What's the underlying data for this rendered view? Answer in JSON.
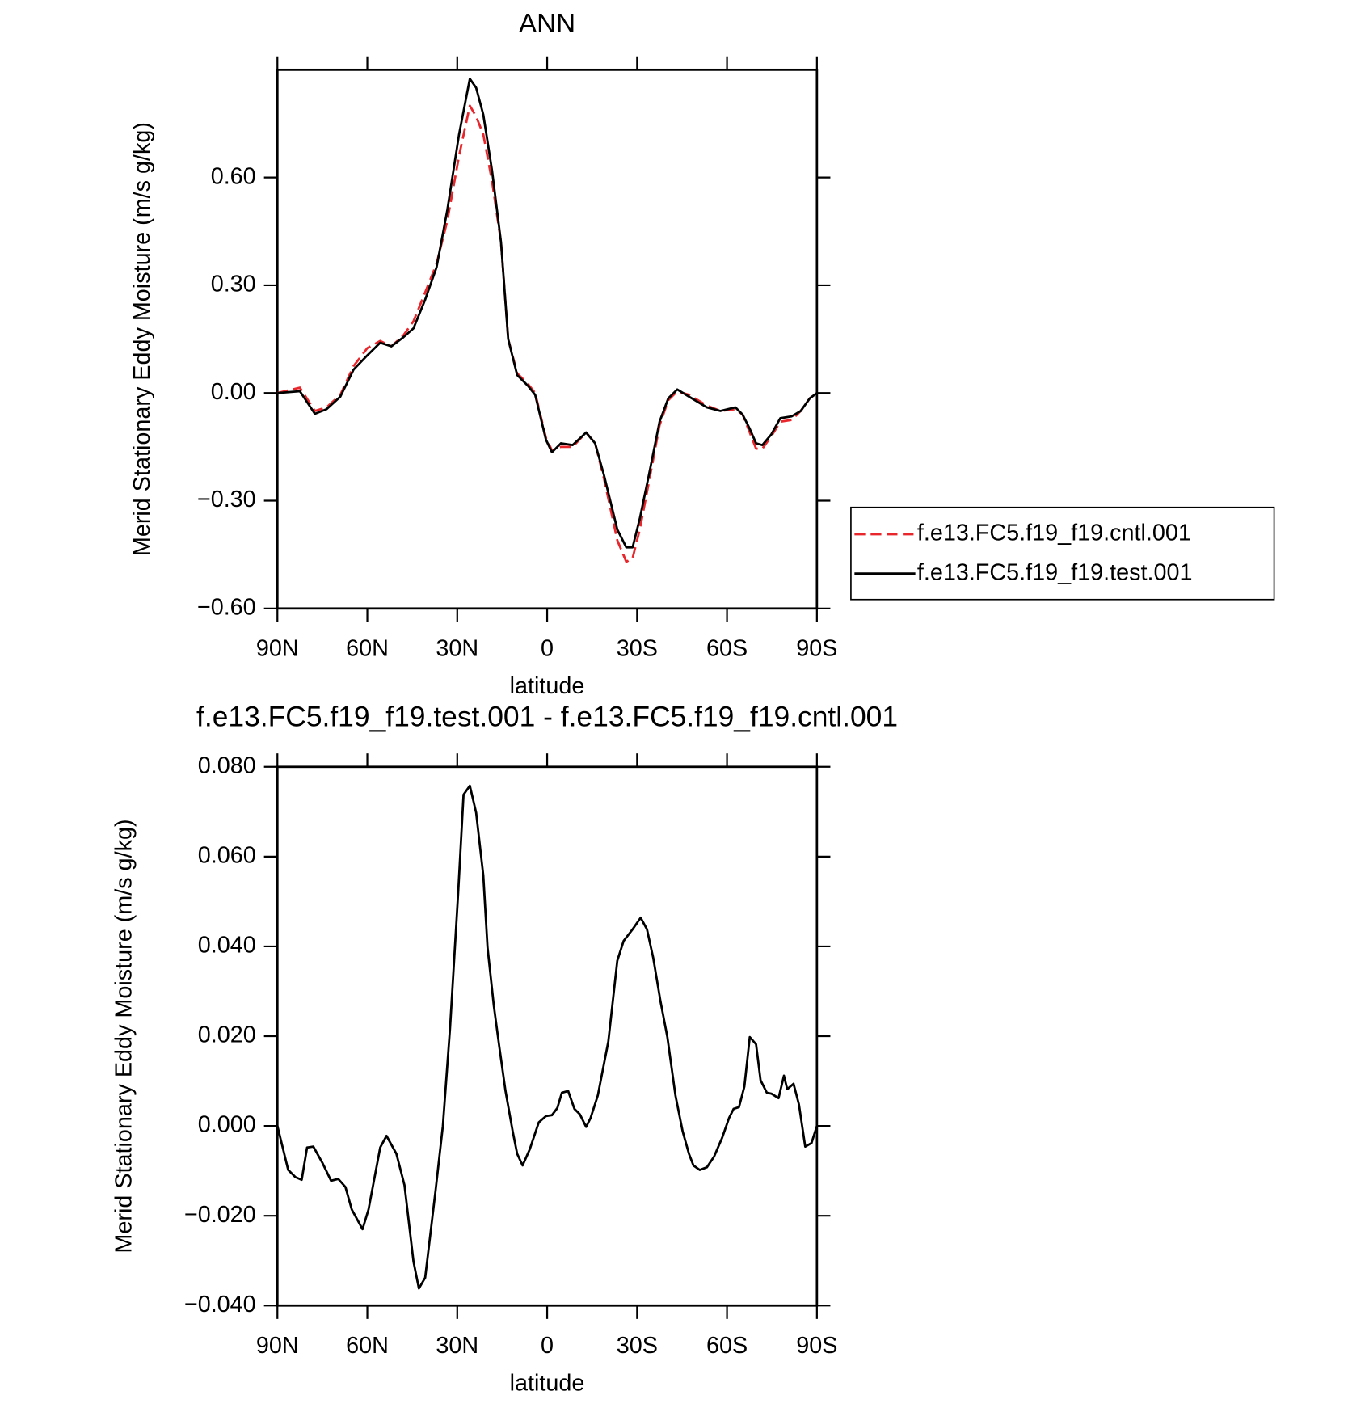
{
  "chart_data": [
    {
      "type": "line",
      "title": "ANN",
      "xlabel": "latitude",
      "ylabel": "Merid Stationary Eddy Moisture (m/s g/kg)",
      "xlim": [
        90,
        -90
      ],
      "xticks": [
        {
          "value": 90,
          "label": "90N"
        },
        {
          "value": 60,
          "label": "60N"
        },
        {
          "value": 30,
          "label": "30N"
        },
        0,
        {
          "value": -30,
          "label": "30S"
        },
        {
          "value": -60,
          "label": "60S"
        },
        {
          "value": -90,
          "label": "90S"
        }
      ],
      "ylim": [
        -0.6,
        0.9
      ],
      "yticks": [
        {
          "value": -0.6,
          "label": "−0.60"
        },
        {
          "value": -0.3,
          "label": "−0.30"
        },
        {
          "value": 0,
          "label": "0.00"
        },
        {
          "value": 0.3,
          "label": "0.30"
        },
        {
          "value": 0.6,
          "label": "0.60"
        }
      ],
      "legend": "right",
      "x": [
        90,
        82.5,
        77.5,
        73.6,
        69,
        64.6,
        60,
        55.7,
        52,
        48,
        44.6,
        40.7,
        36.9,
        33.3,
        29.4,
        25.8,
        23.7,
        21.3,
        18.4,
        15.4,
        13,
        10,
        6.4,
        4,
        0.4,
        -1.6,
        -4.6,
        -8.5,
        -13,
        -16,
        -19,
        -23.4,
        -26.4,
        -28.5,
        -30.9,
        -33.9,
        -37.5,
        -40.4,
        -43.4,
        -47.3,
        -53.3,
        -57.8,
        -62.8,
        -65.2,
        -67.6,
        -69.7,
        -71.8,
        -74.8,
        -77.8,
        -81.6,
        -84.6,
        -87.6,
        -90
      ],
      "series": [
        {
          "name": "f.e13.FC5.f19_f19.cntl.001",
          "color": "#e8262b",
          "dash": true,
          "values": [
            0,
            0.015,
            -0.05,
            -0.04,
            -0.005,
            0.075,
            0.125,
            0.145,
            0.13,
            0.16,
            0.2,
            0.28,
            0.36,
            0.48,
            0.66,
            0.8,
            0.77,
            0.72,
            0.59,
            0.42,
            0.15,
            0.055,
            0.025,
            0,
            -0.125,
            -0.16,
            -0.15,
            -0.15,
            -0.11,
            -0.14,
            -0.24,
            -0.41,
            -0.47,
            -0.46,
            -0.38,
            -0.25,
            -0.09,
            -0.02,
            0.005,
            -0.005,
            -0.035,
            -0.05,
            -0.045,
            -0.06,
            -0.11,
            -0.155,
            -0.155,
            -0.12,
            -0.08,
            -0.075,
            -0.05,
            -0.015,
            0
          ]
        },
        {
          "name": "f.e13.FC5.f19_f19.test.001",
          "color": "#000000",
          "dash": false,
          "values": [
            0,
            0.005,
            -0.058,
            -0.045,
            -0.01,
            0.065,
            0.105,
            0.14,
            0.13,
            0.155,
            0.18,
            0.26,
            0.35,
            0.51,
            0.72,
            0.875,
            0.85,
            0.775,
            0.62,
            0.42,
            0.15,
            0.05,
            0.02,
            -0.005,
            -0.13,
            -0.165,
            -0.14,
            -0.145,
            -0.11,
            -0.14,
            -0.23,
            -0.38,
            -0.43,
            -0.43,
            -0.35,
            -0.23,
            -0.08,
            -0.015,
            0.01,
            -0.01,
            -0.04,
            -0.05,
            -0.04,
            -0.06,
            -0.1,
            -0.14,
            -0.145,
            -0.115,
            -0.07,
            -0.065,
            -0.05,
            -0.015,
            0
          ]
        }
      ]
    },
    {
      "type": "line",
      "title": "f.e13.FC5.f19_f19.test.001 - f.e13.FC5.f19_f19.cntl.001",
      "xlabel": "latitude",
      "ylabel": "Merid Stationary Eddy Moisture (m/s g/kg)",
      "xlim": [
        90,
        -90
      ],
      "xticks": [
        {
          "value": 90,
          "label": "90N"
        },
        {
          "value": 60,
          "label": "60N"
        },
        {
          "value": 30,
          "label": "30N"
        },
        0,
        {
          "value": -30,
          "label": "30S"
        },
        {
          "value": -60,
          "label": "60S"
        },
        {
          "value": -90,
          "label": "90S"
        }
      ],
      "ylim": [
        -0.04,
        0.08
      ],
      "yticks": [
        {
          "value": -0.04,
          "label": "−0.040"
        },
        {
          "value": -0.02,
          "label": "−0.020"
        },
        {
          "value": 0,
          "label": "0.000"
        },
        {
          "value": 0.02,
          "label": "0.020"
        },
        {
          "value": 0.04,
          "label": "0.040"
        },
        {
          "value": 0.06,
          "label": "0.060"
        },
        {
          "value": 0.08,
          "label": "0.080"
        }
      ],
      "x": [
        90,
        86.4,
        84,
        81.9,
        80.1,
        78,
        75,
        72.1,
        69.7,
        67.3,
        65.2,
        61.6,
        59.6,
        55.7,
        53.6,
        50.3,
        47.6,
        44.6,
        42.8,
        40.7,
        37.2,
        34.8,
        32.4,
        29.7,
        27.9,
        25.8,
        23.7,
        21.3,
        19.9,
        17.8,
        16,
        13.9,
        11.5,
        10,
        8.2,
        5.8,
        2.8,
        0.4,
        -1.6,
        -3.4,
        -4.9,
        -7,
        -9.1,
        -10.9,
        -13,
        -14.5,
        -16.9,
        -20.4,
        -23.4,
        -25.5,
        -28.5,
        -31.2,
        -33.3,
        -35.4,
        -37.8,
        -40.1,
        -42.8,
        -45.2,
        -47.3,
        -48.8,
        -50.9,
        -53.3,
        -55.7,
        -58.4,
        -60.7,
        -62.2,
        -64,
        -65.8,
        -67.6,
        -69.7,
        -71.2,
        -73.3,
        -74.8,
        -77.2,
        -79,
        -80.1,
        -82.2,
        -84,
        -86.1,
        -88.2,
        -90
      ],
      "series": [
        {
          "color": "#000000",
          "values": [
            0,
            -0.0098,
            -0.0114,
            -0.012,
            -0.0048,
            -0.0046,
            -0.0082,
            -0.0122,
            -0.0118,
            -0.0136,
            -0.0186,
            -0.023,
            -0.0186,
            -0.0048,
            -0.0022,
            -0.0062,
            -0.0132,
            -0.0302,
            -0.0362,
            -0.0338,
            -0.0142,
            0,
            0.0218,
            0.0518,
            0.0738,
            0.0758,
            0.0698,
            0.0558,
            0.0398,
            0.0268,
            0.0178,
            0.0078,
            -0.0012,
            -0.0062,
            -0.0088,
            -0.0052,
            0.0008,
            0.0022,
            0.0024,
            0.004,
            0.0074,
            0.0078,
            0.0038,
            0.0026,
            -0.0002,
            0.0018,
            0.0068,
            0.0188,
            0.0368,
            0.0412,
            0.0438,
            0.0464,
            0.0438,
            0.0374,
            0.0278,
            0.0198,
            0.0068,
            -0.0012,
            -0.0062,
            -0.0088,
            -0.0098,
            -0.0092,
            -0.0068,
            -0.0026,
            0.0018,
            0.0038,
            0.0042,
            0.0088,
            0.0198,
            0.0182,
            0.0102,
            0.0074,
            0.0072,
            0.0062,
            0.0112,
            0.0082,
            0.0094,
            0.0048,
            -0.0046,
            -0.0038,
            0
          ]
        }
      ]
    }
  ]
}
